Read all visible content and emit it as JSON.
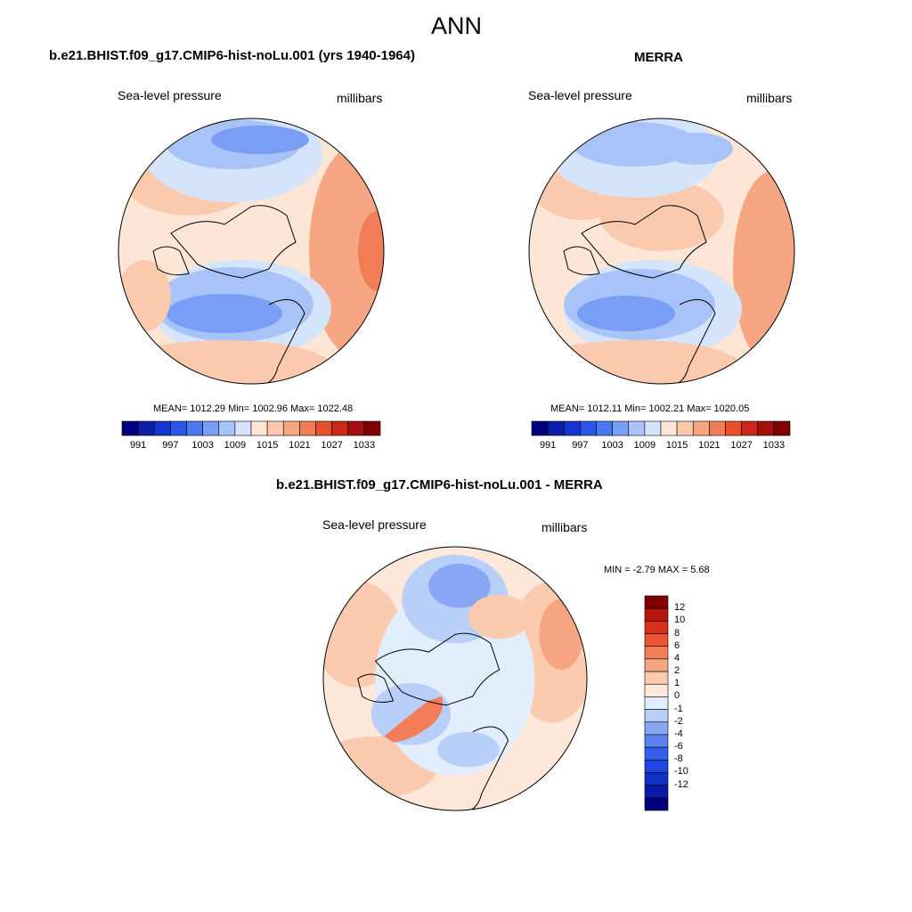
{
  "page": {
    "title": "ANN"
  },
  "panels": [
    {
      "title": "b.e21.BHIST.f09_g17.CMIP6-hist-noLu.001 (yrs 1940-1964)",
      "left_label": "Sea-level pressure",
      "right_label": "millibars",
      "stats": "MEAN= 1012.29  Min= 1002.96  Max= 1022.48"
    },
    {
      "title": "MERRA",
      "left_label": "Sea-level pressure",
      "right_label": "millibars",
      "stats": "MEAN= 1012.11  Min= 1002.21  Max= 1020.05"
    },
    {
      "title": "b.e21.BHIST.f09_g17.CMIP6-hist-noLu.001 - MERRA",
      "left_label": "Sea-level pressure",
      "right_label": "millibars",
      "stats": "MIN =  -2.79 MAX =   5.68"
    }
  ],
  "colorbar_abs": {
    "colors": [
      "#00007f",
      "#0d1fa8",
      "#1536cc",
      "#2b55e6",
      "#4a78f2",
      "#7a9ef5",
      "#a8c3f7",
      "#d4e4fb",
      "#fde6d6",
      "#fbc9ae",
      "#f7a684",
      "#f17c55",
      "#e6512b",
      "#c9281a",
      "#a30f0f",
      "#7f0000"
    ],
    "tick_labels": [
      "991",
      "997",
      "1003",
      "1009",
      "1015",
      "1021",
      "1027",
      "1033"
    ]
  },
  "colorbar_diff": {
    "colors": [
      "#00007f",
      "#0a1ca6",
      "#1030c8",
      "#1f46e0",
      "#3560ec",
      "#5a82f2",
      "#8aa7f5",
      "#b8cff9",
      "#e3eefc",
      "#fde8da",
      "#fbcbb0",
      "#f7a684",
      "#f27d58",
      "#eb5531",
      "#d8301b",
      "#b4150e",
      "#7f0000"
    ],
    "tick_labels": [
      "12",
      "10",
      "8",
      "6",
      "4",
      "2",
      "1",
      "0",
      "-1",
      "-2",
      "-4",
      "-6",
      "-8",
      "-10",
      "-12"
    ]
  }
}
